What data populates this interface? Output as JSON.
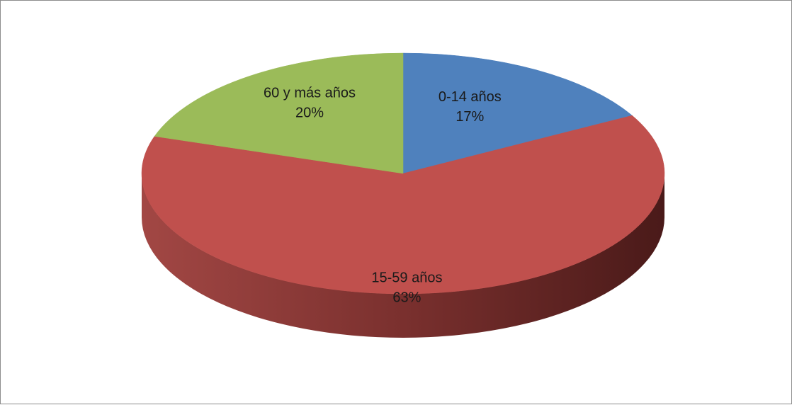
{
  "chart_data": {
    "type": "pie",
    "style": "3d",
    "title": "",
    "slices": [
      {
        "label": "0-14 años",
        "value": 17,
        "value_label": "17%",
        "color": "#4f81bd"
      },
      {
        "label": "15-59 años",
        "value": 63,
        "value_label": "63%",
        "color": "#c0504d"
      },
      {
        "label": "60 y más años",
        "value": 20,
        "value_label": "20%",
        "color": "#9bbb59"
      }
    ],
    "legend": "none",
    "border_color": "#8c8c8c"
  }
}
